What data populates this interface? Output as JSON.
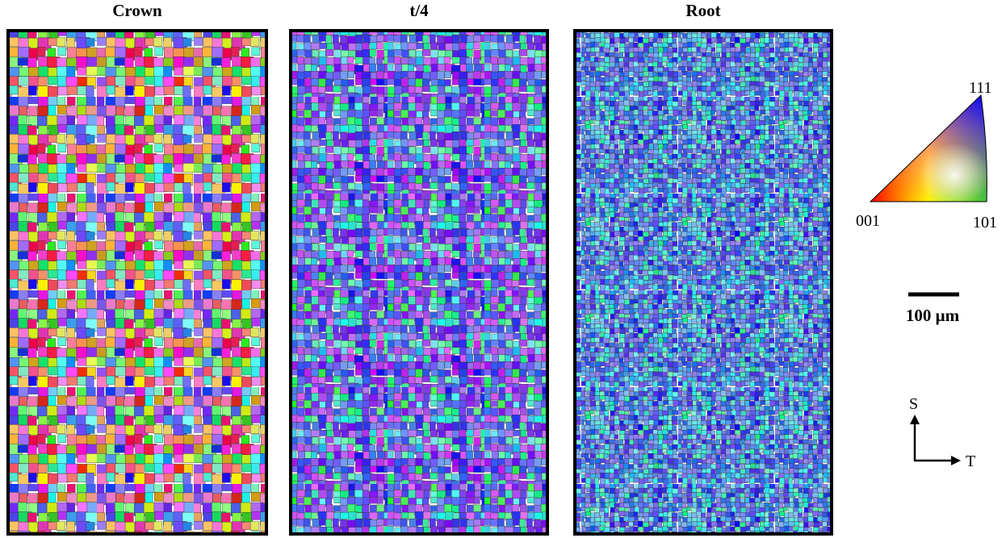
{
  "panels": [
    {
      "title": "Crown"
    },
    {
      "title": "t/4"
    },
    {
      "title": "Root"
    }
  ],
  "legend": {
    "labels": [
      "111",
      "001",
      "101"
    ]
  },
  "scale_bar": "100 μm",
  "axes": {
    "vertical": "S",
    "horizontal": "T"
  }
}
